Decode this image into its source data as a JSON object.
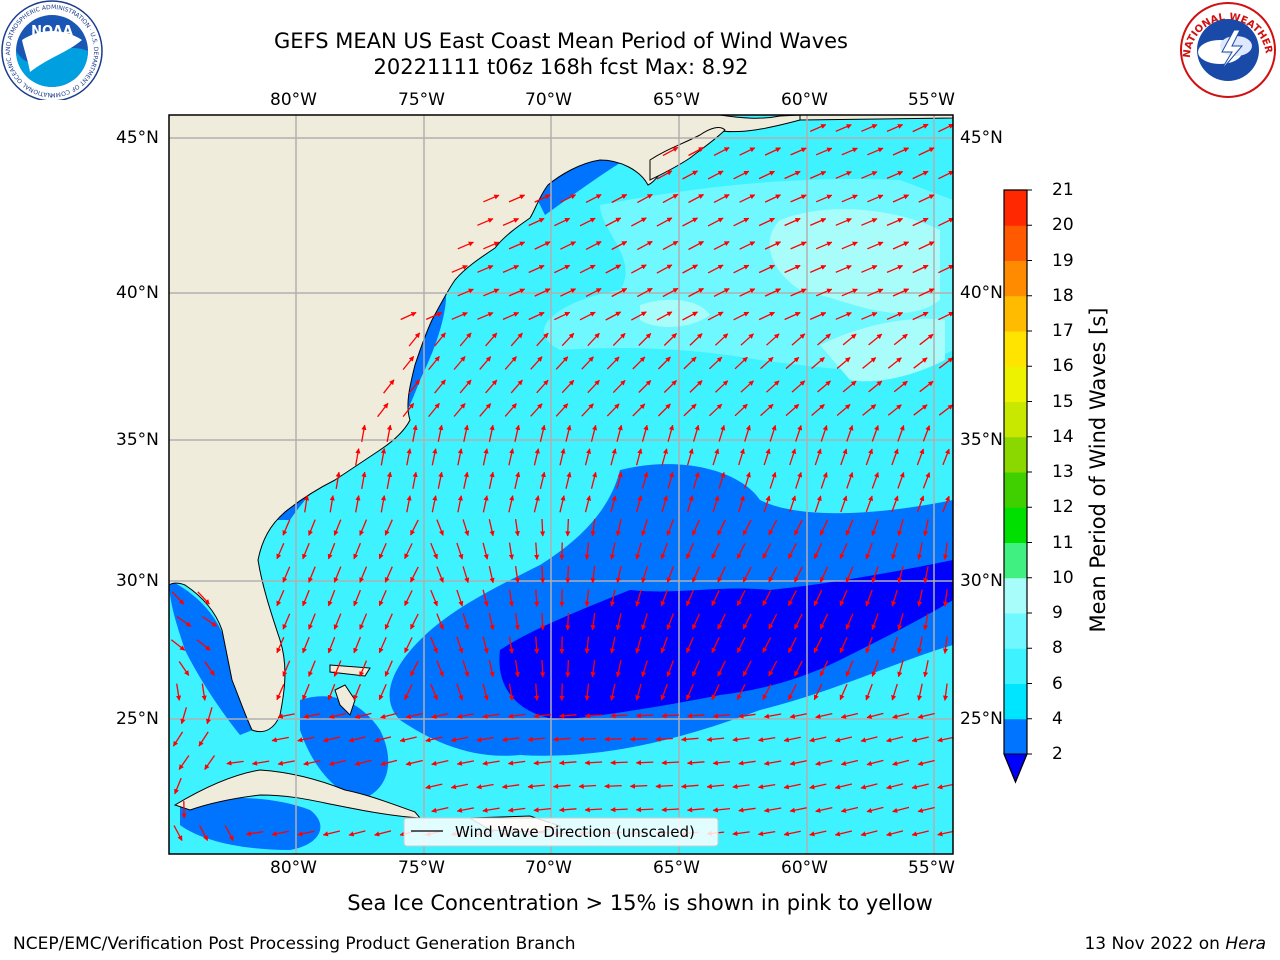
{
  "title": {
    "line1": "GEFS MEAN US East Coast Mean Period of Wind Waves",
    "line2": "20221111 t06z 168h fcst   Max: 8.92"
  },
  "map": {
    "lon_range": [
      -85,
      -54.4
    ],
    "lat_range": [
      20.2,
      46
    ],
    "lon_ticks": [
      "80°W",
      "75°W",
      "70°W",
      "65°W",
      "60°W",
      "55°W"
    ],
    "lat_ticks": [
      "45°N",
      "40°N",
      "35°N",
      "30°N",
      "25°N"
    ],
    "legend_label": "Wind Wave Direction (unscaled)",
    "arrow_color": "#ff0000",
    "land_color": "#efecdc",
    "grid_color": "#b0b0b0"
  },
  "colorbar": {
    "title": "Mean Period of Wind Waves [s]",
    "ticks": [
      "2",
      "4",
      "6",
      "8",
      "9",
      "10",
      "11",
      "12",
      "13",
      "14",
      "15",
      "16",
      "17",
      "18",
      "19",
      "20",
      "21"
    ],
    "colors": [
      "#0073ff",
      "#00e5ff",
      "#3ff2ff",
      "#6ff8ff",
      "#a8fcfa",
      "#40f080",
      "#00e000",
      "#40d000",
      "#8ad800",
      "#c8e800",
      "#ecf200",
      "#ffe400",
      "#ffbb00",
      "#ff8c00",
      "#ff5a00",
      "#ff2800",
      "#ff0000"
    ],
    "extend_color": "#0000ff"
  },
  "footer": {
    "note": "Sea Ice Concentration > 15% is shown in pink to yellow",
    "left": "NCEP/EMC/Verification Post Processing Product Generation Branch",
    "right_date": "13 Nov 2022 on ",
    "right_host": "Hera"
  },
  "logos": {
    "noaa_text": "NOAA",
    "noaa_ring": "NATIONAL OCEANIC AND ATMOSPHERIC ADMINISTRATION · U.S. DEPARTMENT OF COMMERCE",
    "nws_ring": "NATIONAL WEATHER SERVICE"
  }
}
